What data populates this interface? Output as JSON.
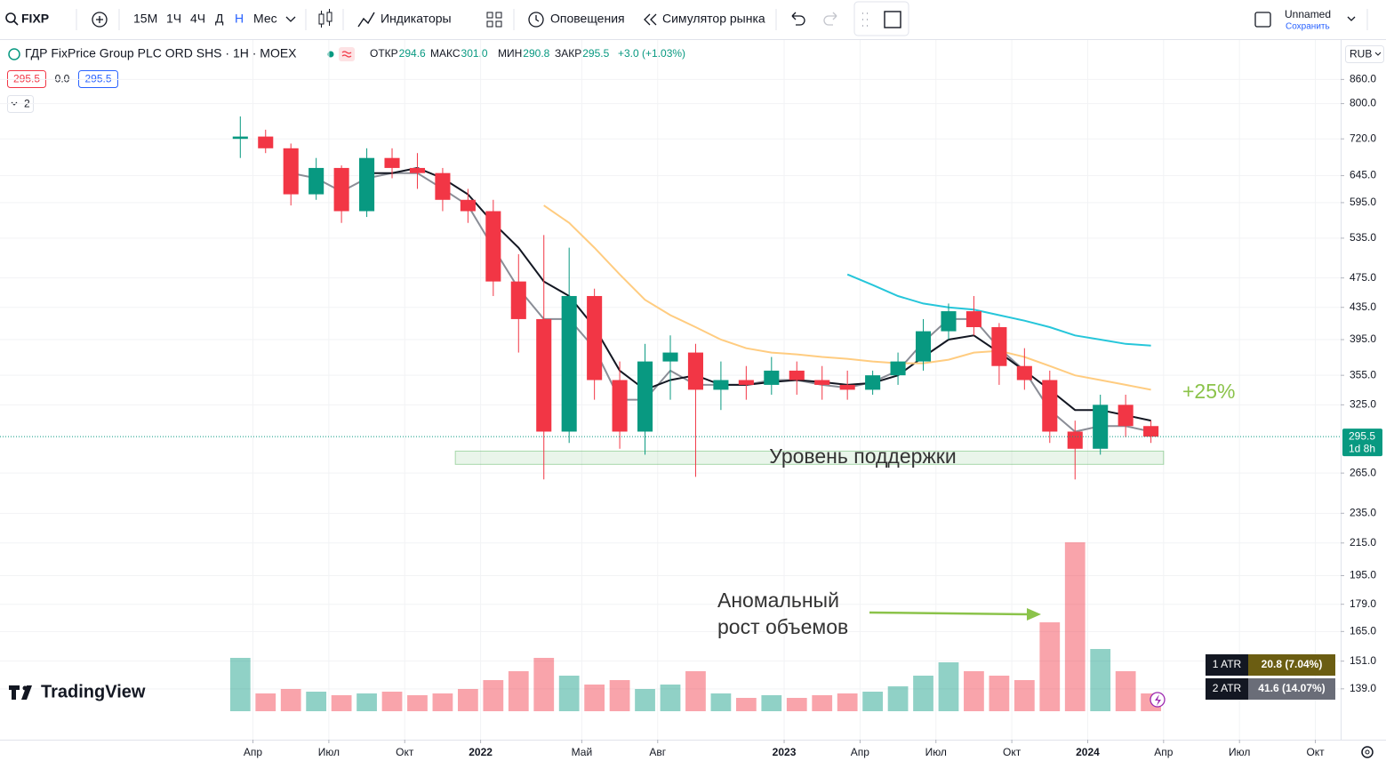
{
  "toolbar": {
    "symbol": "FIXP",
    "intervals": [
      "15М",
      "1Ч",
      "4Ч",
      "Д",
      "Н",
      "Мес"
    ],
    "active_interval": "Н",
    "indicators": "Индикаторы",
    "alerts": "Оповещения",
    "replay": "Симулятор рынка",
    "layout_name": "Unnamed",
    "save": "Сохранить"
  },
  "legend": {
    "title": "ГДР FixPrice Group PLC ORD SHS · 1Н · MOEX",
    "ohlc": [
      {
        "label": "ОТКР",
        "value": "294.6"
      },
      {
        "label": "МАКС",
        "value": "301.0"
      },
      {
        "label": "МИН",
        "value": "290.8"
      },
      {
        "label": "ЗАКР",
        "value": "295.5"
      }
    ],
    "change": "+3.0 (+1.03%)",
    "bid": "295.5",
    "spread": "0.0",
    "ask": "295.5",
    "indicators_count": "2"
  },
  "currency": "RUB",
  "brand": "TradingView",
  "atr": [
    {
      "label": "1 ATR",
      "value": "20.8 (7.04%)"
    },
    {
      "label": "2 ATR",
      "value": "41.6 (14.07%)"
    }
  ],
  "chart_data": {
    "type": "candlestick",
    "log_scale": true,
    "grid": true,
    "up_color": "#089981",
    "down_color": "#f23645",
    "x": [
      "2021-03",
      "2021-04",
      "2021-05",
      "2021-06",
      "2021-07",
      "2021-08",
      "2021-09",
      "2021-10",
      "2021-11",
      "2021-12",
      "2022-01",
      "2022-02",
      "2022-03",
      "2022-04",
      "2022-05",
      "2022-06",
      "2022-07",
      "2022-08",
      "2022-09",
      "2022-10",
      "2022-11",
      "2022-12",
      "2023-01",
      "2023-02",
      "2023-03",
      "2023-04",
      "2023-05",
      "2023-06",
      "2023-07",
      "2023-08",
      "2023-09",
      "2023-10",
      "2023-11",
      "2023-12",
      "2024-01",
      "2024-02",
      "2024-03"
    ],
    "open": [
      720,
      725,
      700,
      610,
      660,
      580,
      680,
      660,
      650,
      600,
      580,
      470,
      420,
      300,
      450,
      350,
      300,
      370,
      380,
      340,
      350,
      345,
      360,
      350,
      345,
      340,
      355,
      370,
      405,
      430,
      410,
      365,
      350,
      300,
      285,
      325,
      305
    ],
    "high": [
      770,
      740,
      710,
      680,
      665,
      700,
      700,
      690,
      660,
      620,
      600,
      510,
      540,
      520,
      460,
      370,
      390,
      400,
      390,
      370,
      365,
      375,
      370,
      365,
      360,
      360,
      380,
      420,
      440,
      450,
      415,
      385,
      360,
      310,
      335,
      335,
      310
    ],
    "low": [
      680,
      690,
      590,
      600,
      560,
      570,
      640,
      620,
      580,
      560,
      450,
      380,
      260,
      290,
      330,
      285,
      280,
      330,
      262,
      320,
      330,
      335,
      335,
      330,
      330,
      335,
      345,
      360,
      395,
      400,
      345,
      340,
      290,
      260,
      280,
      295,
      290
    ],
    "close": [
      725,
      700,
      610,
      660,
      580,
      680,
      660,
      650,
      600,
      580,
      470,
      420,
      300,
      450,
      350,
      300,
      370,
      380,
      340,
      350,
      345,
      360,
      350,
      345,
      340,
      355,
      370,
      405,
      430,
      410,
      365,
      350,
      300,
      285,
      325,
      305,
      295.5
    ],
    "volume": [
      60,
      20,
      25,
      22,
      18,
      20,
      22,
      18,
      20,
      25,
      35,
      45,
      60,
      40,
      30,
      35,
      25,
      30,
      45,
      20,
      15,
      18,
      15,
      18,
      20,
      22,
      28,
      40,
      55,
      45,
      40,
      35,
      100,
      190,
      70,
      45,
      20
    ],
    "vlim": [
      0,
      200
    ],
    "moving_averages": [
      {
        "color": "#8a8d96",
        "values": [
          null,
          null,
          650,
          640,
          615,
          640,
          650,
          650,
          620,
          590,
          520,
          460,
          420,
          420,
          385,
          330,
          330,
          360,
          345,
          345,
          345,
          350,
          350,
          345,
          342,
          348,
          360,
          392,
          420,
          420,
          385,
          360,
          320,
          300,
          305,
          305,
          300
        ]
      },
      {
        "color": "#131722",
        "values": [
          null,
          null,
          null,
          null,
          null,
          650,
          650,
          660,
          640,
          610,
          560,
          520,
          470,
          450,
          410,
          360,
          340,
          350,
          355,
          345,
          345,
          348,
          350,
          348,
          345,
          347,
          355,
          375,
          395,
          400,
          380,
          360,
          340,
          320,
          320,
          315,
          310
        ]
      },
      {
        "color": "#ffcc80",
        "values": [
          null,
          null,
          null,
          null,
          null,
          null,
          null,
          null,
          null,
          null,
          null,
          null,
          590,
          560,
          520,
          480,
          445,
          425,
          410,
          395,
          385,
          380,
          378,
          375,
          373,
          370,
          368,
          368,
          372,
          380,
          382,
          375,
          365,
          355,
          350,
          345,
          340
        ]
      },
      {
        "color": "#26c6da",
        "values": [
          null,
          null,
          null,
          null,
          null,
          null,
          null,
          null,
          null,
          null,
          null,
          null,
          null,
          null,
          null,
          null,
          null,
          null,
          null,
          null,
          null,
          null,
          null,
          null,
          480,
          465,
          450,
          440,
          435,
          432,
          425,
          418,
          410,
          400,
          395,
          390,
          388
        ]
      }
    ],
    "xlim": [
      "2020-06",
      "2024-11"
    ],
    "xticks": [
      {
        "value": "2021-04",
        "label": "Апр"
      },
      {
        "value": "2021-07",
        "label": "Июл"
      },
      {
        "value": "2021-10",
        "label": "Окт"
      },
      {
        "value": "2022-01",
        "label": "2022"
      },
      {
        "value": "2022-05",
        "label": "Май"
      },
      {
        "value": "2022-08",
        "label": "Авг"
      },
      {
        "value": "2023-01",
        "label": "2023"
      },
      {
        "value": "2023-04",
        "label": "Апр"
      },
      {
        "value": "2023-07",
        "label": "Июл"
      },
      {
        "value": "2023-10",
        "label": "Окт"
      },
      {
        "value": "2024-01",
        "label": "2024"
      },
      {
        "value": "2024-04",
        "label": "Апр"
      },
      {
        "value": "2024-07",
        "label": "Июл"
      },
      {
        "value": "2024-10",
        "label": "Окт"
      }
    ],
    "ylim": [
      130,
      960
    ],
    "yticks": [
      {
        "value": 860,
        "label": "860.0"
      },
      {
        "value": 800,
        "label": "800.0"
      },
      {
        "value": 720,
        "label": "720.0"
      },
      {
        "value": 645,
        "label": "645.0"
      },
      {
        "value": 595,
        "label": "595.0"
      },
      {
        "value": 535,
        "label": "535.0"
      },
      {
        "value": 475,
        "label": "475.0"
      },
      {
        "value": 435,
        "label": "435.0"
      },
      {
        "value": 395,
        "label": "395.0"
      },
      {
        "value": 355,
        "label": "355.0"
      },
      {
        "value": 325,
        "label": "325.0"
      },
      {
        "value": 265,
        "label": "265.0"
      },
      {
        "value": 235,
        "label": "235.0"
      },
      {
        "value": 215,
        "label": "215.0"
      },
      {
        "value": 195,
        "label": "195.0"
      },
      {
        "value": 179,
        "label": "179.0"
      },
      {
        "value": 165,
        "label": "165.0"
      },
      {
        "value": 151,
        "label": "151.0"
      },
      {
        "value": 139,
        "label": "139.0"
      }
    ],
    "last_price": 295.5,
    "countdown": "1d 8h",
    "support_zone": {
      "text": "Уровень поддержки",
      "x": [
        "2021-12",
        "2024-04"
      ],
      "y": [
        272,
        283
      ]
    },
    "gain_note": "+25%",
    "volume_note": [
      "Аномальный",
      "рост объемов"
    ]
  }
}
